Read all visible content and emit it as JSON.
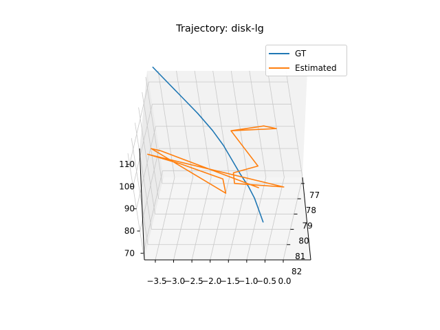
{
  "chart_data": {
    "type": "line",
    "projection": "3d",
    "title": "Trajectory: disk-lg",
    "xlabel": "",
    "ylabel": "",
    "zlabel": "",
    "x_ticks": [
      "−3.5",
      "−3.0",
      "−2.5",
      "−2.0",
      "−1.5",
      "−1.0",
      "−0.5",
      "0.0"
    ],
    "y_ticks": [
      "77",
      "78",
      "79",
      "80",
      "81",
      "82"
    ],
    "z_ticks": [
      "70",
      "80",
      "90",
      "100",
      "110"
    ],
    "grid": true,
    "legend_position": "top-right",
    "series": [
      {
        "name": "GT",
        "color": "#1f77b4",
        "points": [
          [
            -3.7,
            76.2,
            114
          ],
          [
            -3.45,
            76.4,
            111
          ],
          [
            -2.9,
            76.9,
            105
          ],
          [
            -2.5,
            77.2,
            100
          ],
          [
            -2.1,
            77.6,
            95
          ],
          [
            -1.8,
            78.0,
            91
          ],
          [
            -1.55,
            78.5,
            88
          ],
          [
            -1.3,
            79.0,
            85
          ],
          [
            -1.05,
            79.5,
            83
          ],
          [
            -0.85,
            80.0,
            81
          ],
          [
            -0.7,
            80.5,
            79
          ],
          [
            -0.55,
            81.0,
            77
          ]
        ]
      },
      {
        "name": "Estimated",
        "color": "#ff7f0e",
        "points": [
          [
            -1.5,
            78.2,
            99
          ],
          [
            -0.8,
            78.1,
            100
          ],
          [
            -0.6,
            78.1,
            100.5
          ],
          [
            -0.25,
            78.2,
            100
          ],
          [
            -1.5,
            78.2,
            99
          ],
          [
            -0.75,
            79.2,
            90
          ],
          [
            -1.4,
            79.5,
            89
          ],
          [
            -1.35,
            79.9,
            87
          ],
          [
            -0.05,
            79.7,
            84
          ],
          [
            -3.7,
            79.3,
            96
          ],
          [
            -2.8,
            79.5,
            93
          ],
          [
            -1.65,
            79.9,
            89
          ],
          [
            -1.55,
            80.4,
            86
          ],
          [
            -3.5,
            79.8,
            102
          ],
          [
            -3.25,
            79.8,
            101
          ],
          [
            -0.7,
            79.9,
            85
          ]
        ]
      }
    ]
  }
}
